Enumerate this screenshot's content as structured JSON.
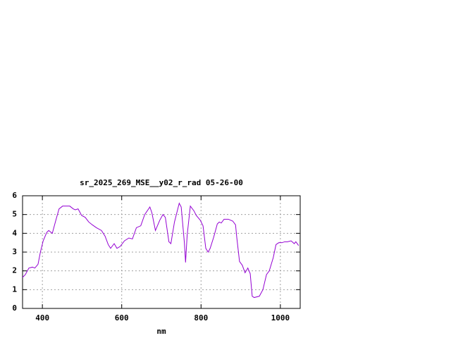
{
  "chart_data": {
    "type": "line",
    "title": "sr_2025_269_MSE__y02_r_rad 05-26-00",
    "x_label": "nm",
    "xlim": [
      350,
      1050
    ],
    "xticks": [
      400,
      600,
      800,
      1000
    ],
    "ylim": [
      0,
      6
    ],
    "yticks": [
      0,
      1,
      2,
      3,
      4,
      5,
      6
    ],
    "grid": true,
    "series": [
      {
        "color": "#9400d3",
        "x": [
          350,
          357,
          366,
          375,
          381,
          389,
          395,
          402,
          411,
          416,
          425,
          434,
          442,
          451,
          469,
          478,
          483,
          490,
          499,
          508,
          517,
          526,
          536,
          549,
          558,
          566,
          572,
          581,
          588,
          596,
          607,
          618,
          627,
          637,
          648,
          658,
          671,
          676,
          685,
          696,
          704,
          710,
          719,
          724,
          733,
          745,
          750,
          758,
          761,
          765,
          773,
          782,
          788,
          798,
          805,
          812,
          818,
          823,
          832,
          841,
          846,
          851,
          858,
          869,
          880,
          887,
          890,
          897,
          904,
          911,
          918,
          924,
          929,
          934,
          947,
          956,
          965,
          972,
          982,
          989,
          996,
          1004,
          1011,
          1018,
          1027,
          1035,
          1039,
          1046
        ],
        "values": [
          1.65,
          1.8,
          2.15,
          2.2,
          2.15,
          2.35,
          3.0,
          3.6,
          4.05,
          4.15,
          4.0,
          4.7,
          5.3,
          5.45,
          5.45,
          5.3,
          5.25,
          5.3,
          4.95,
          4.85,
          4.6,
          4.45,
          4.3,
          4.15,
          3.85,
          3.4,
          3.2,
          3.45,
          3.2,
          3.3,
          3.6,
          3.75,
          3.7,
          4.3,
          4.4,
          5.0,
          5.4,
          5.1,
          4.15,
          4.7,
          5.0,
          4.85,
          3.55,
          3.45,
          4.6,
          5.6,
          5.4,
          3.5,
          2.45,
          3.9,
          5.45,
          5.2,
          4.95,
          4.7,
          4.4,
          3.2,
          3.0,
          3.2,
          3.8,
          4.5,
          4.6,
          4.55,
          4.75,
          4.75,
          4.65,
          4.45,
          3.8,
          2.5,
          2.3,
          1.9,
          2.15,
          1.85,
          0.65,
          0.58,
          0.65,
          1.0,
          1.8,
          2.0,
          2.7,
          3.4,
          3.5,
          3.5,
          3.55,
          3.55,
          3.6,
          3.45,
          3.55,
          3.35
        ]
      }
    ]
  }
}
